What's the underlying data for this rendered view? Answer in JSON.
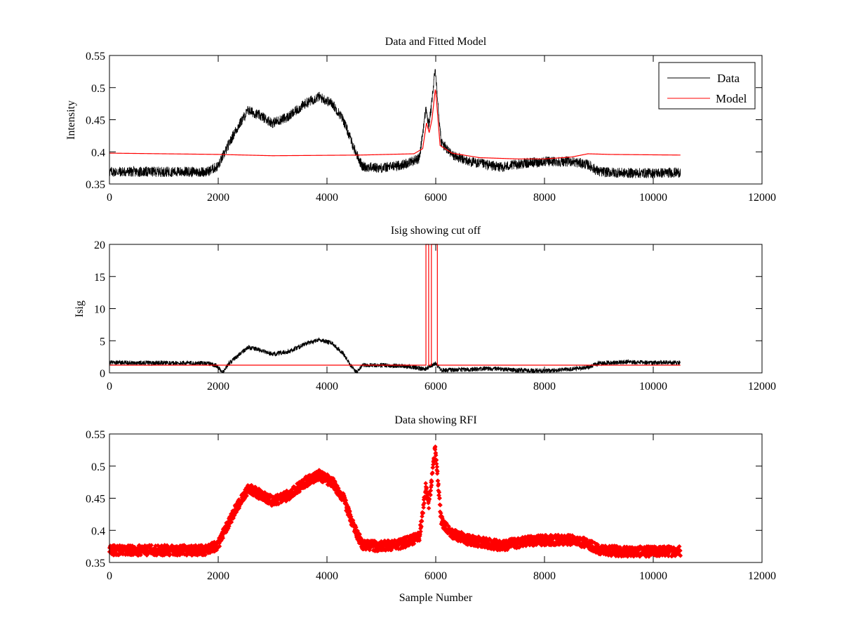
{
  "figure": {
    "xlabel": "Sample Number"
  },
  "chart_data": [
    {
      "type": "line",
      "title": "Data and Fitted Model",
      "xlabel": "",
      "ylabel": "Intensity",
      "xlim": [
        0,
        12000
      ],
      "ylim": [
        0.35,
        0.55
      ],
      "xticks": [
        "0",
        "2000",
        "4000",
        "6000",
        "8000",
        "10000",
        "12000"
      ],
      "yticks": [
        "0.35",
        "0.4",
        "0.45",
        "0.5",
        "0.55"
      ],
      "grid": false,
      "legend": {
        "placement": "top-right",
        "entries": [
          "Data",
          "Model"
        ]
      },
      "series": [
        {
          "name": "Data",
          "color": "#000000",
          "x": [
            0,
            1800,
            2000,
            2300,
            2550,
            2800,
            3000,
            3300,
            3600,
            3850,
            4100,
            4300,
            4500,
            4650,
            5000,
            5400,
            5700,
            5820,
            5870,
            5920,
            5990,
            6100,
            6300,
            6600,
            7200,
            7600,
            8000,
            8500,
            8800,
            9000,
            9500,
            10000,
            10500
          ],
          "y": [
            0.369,
            0.369,
            0.378,
            0.43,
            0.465,
            0.455,
            0.445,
            0.455,
            0.475,
            0.486,
            0.475,
            0.45,
            0.405,
            0.377,
            0.375,
            0.38,
            0.39,
            0.468,
            0.44,
            0.47,
            0.53,
            0.415,
            0.395,
            0.385,
            0.376,
            0.382,
            0.385,
            0.385,
            0.38,
            0.369,
            0.367,
            0.367,
            0.368
          ],
          "noise_amplitude": 0.008,
          "n_samples": 10500
        },
        {
          "name": "Model",
          "color": "#ff0000",
          "x": [
            0,
            2000,
            3000,
            4600,
            5600,
            5760,
            5830,
            5880,
            5930,
            5995,
            6080,
            6300,
            6800,
            7500,
            8000,
            8500,
            8800,
            9200,
            10500
          ],
          "y": [
            0.398,
            0.396,
            0.394,
            0.395,
            0.397,
            0.405,
            0.445,
            0.43,
            0.45,
            0.5,
            0.41,
            0.398,
            0.391,
            0.389,
            0.389,
            0.392,
            0.397,
            0.396,
            0.395
          ]
        }
      ]
    },
    {
      "type": "line",
      "title": "Isig showing cut off",
      "xlabel": "",
      "ylabel": "Isig",
      "xlim": [
        0,
        12000
      ],
      "ylim": [
        0,
        20
      ],
      "xticks": [
        "0",
        "2000",
        "4000",
        "6000",
        "8000",
        "10000",
        "12000"
      ],
      "yticks": [
        "0",
        "5",
        "10",
        "15",
        "20"
      ],
      "grid": false,
      "series": [
        {
          "name": "Isig",
          "color": "#000000",
          "x": [
            0,
            1800,
            1950,
            2080,
            2200,
            2550,
            2800,
            3000,
            3300,
            3600,
            3850,
            4100,
            4300,
            4450,
            4540,
            4650,
            5000,
            5500,
            5800,
            6000,
            6100,
            6500,
            7000,
            7500,
            8000,
            8500,
            8800,
            9000,
            9500,
            10000,
            10500
          ],
          "y": [
            1.6,
            1.5,
            1.2,
            0.1,
            1.5,
            4.0,
            3.5,
            2.9,
            3.3,
            4.5,
            5.2,
            4.6,
            3.0,
            1.0,
            0.1,
            1.2,
            1.2,
            1.0,
            0.6,
            1.5,
            0.4,
            0.5,
            0.7,
            0.4,
            0.3,
            0.6,
            0.9,
            1.5,
            1.7,
            1.6,
            1.6
          ],
          "noise_amplitude": 0.35,
          "n_samples": 10500
        },
        {
          "name": "Cut off",
          "color": "#ff0000",
          "baseline": 1.2,
          "flag_high": 20,
          "flag_intervals": [
            [
              5820,
              5870
            ],
            [
              5920,
              6030
            ]
          ],
          "x_end": 10500
        }
      ]
    },
    {
      "type": "scatter",
      "title": "Data showing RFI",
      "xlabel": "Sample Number",
      "ylabel": "",
      "xlim": [
        0,
        12000
      ],
      "ylim": [
        0.35,
        0.55
      ],
      "xticks": [
        "0",
        "2000",
        "4000",
        "6000",
        "8000",
        "10000",
        "12000"
      ],
      "yticks": [
        "0.35",
        "0.4",
        "0.45",
        "0.5",
        "0.55"
      ],
      "grid": false,
      "series": [
        {
          "name": "RFI-flagged data",
          "color": "#ff0000",
          "marker": "diamond",
          "source": "Data",
          "noise_amplitude": 0.008,
          "n_samples": 10500
        }
      ]
    }
  ]
}
